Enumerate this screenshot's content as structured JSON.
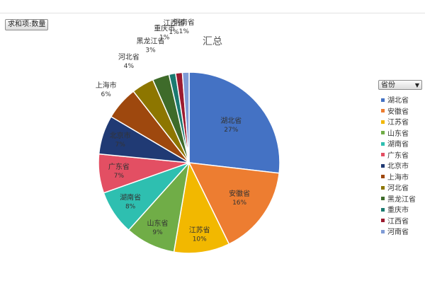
{
  "field_button": {
    "label": "求和项:数量"
  },
  "legend_filter": {
    "label": "省份",
    "arrow": "▼"
  },
  "chart_data": {
    "type": "pie",
    "title": "汇总",
    "legend_position": "right",
    "slices": [
      {
        "label": "湖北省",
        "percent_label": "27%",
        "value": 27,
        "color": "#4472C4"
      },
      {
        "label": "安徽省",
        "percent_label": "16%",
        "value": 16,
        "color": "#ED7D31"
      },
      {
        "label": "江苏省",
        "percent_label": "10%",
        "value": 10,
        "color": "#F2B800"
      },
      {
        "label": "山东省",
        "percent_label": "9%",
        "value": 9,
        "color": "#70AD47"
      },
      {
        "label": "湖南省",
        "percent_label": "8%",
        "value": 8,
        "color": "#2EBFB0"
      },
      {
        "label": "广东省",
        "percent_label": "7%",
        "value": 7,
        "color": "#E34F63"
      },
      {
        "label": "北京市",
        "percent_label": "7%",
        "value": 7,
        "color": "#203A74"
      },
      {
        "label": "上海市",
        "percent_label": "6%",
        "value": 6,
        "color": "#9E480E"
      },
      {
        "label": "河北省",
        "percent_label": "4%",
        "value": 4,
        "color": "#8D7600"
      },
      {
        "label": "黑龙江省",
        "percent_label": "3%",
        "value": 3,
        "color": "#3E6B2A"
      },
      {
        "label": "重庆市",
        "percent_label": "1%",
        "value": 1.2,
        "color": "#1B7A70"
      },
      {
        "label": "江西省",
        "percent_label": "1%",
        "value": 1.2,
        "color": "#9B1B30"
      },
      {
        "label": "河南省",
        "percent_label": "1%",
        "value": 1.2,
        "color": "#7F9BD6"
      }
    ]
  }
}
